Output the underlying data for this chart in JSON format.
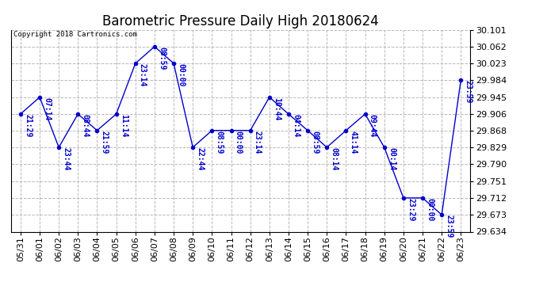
{
  "title": "Barometric Pressure Daily High 20180624",
  "copyright": "Copyright 2018 Cartronics.com",
  "line_color": "#0000cc",
  "background_color": "#ffffff",
  "plot_bg_color": "#ffffff",
  "grid_color": "#b8b8b8",
  "legend_bg": "#0000aa",
  "legend_text_color": "#ffffff",
  "ylim_min": 29.634,
  "ylim_max": 30.101,
  "yticks": [
    30.101,
    30.062,
    30.023,
    29.984,
    29.945,
    29.906,
    29.868,
    29.829,
    29.79,
    29.751,
    29.712,
    29.673,
    29.634
  ],
  "dates": [
    "05/31",
    "06/01",
    "06/02",
    "06/03",
    "06/04",
    "06/05",
    "06/06",
    "06/07",
    "06/08",
    "06/09",
    "06/10",
    "06/11",
    "06/12",
    "06/13",
    "06/14",
    "06/15",
    "06/16",
    "06/17",
    "06/18",
    "06/19",
    "06/20",
    "06/21",
    "06/22",
    "06/23"
  ],
  "values": [
    29.906,
    29.945,
    29.829,
    29.906,
    29.868,
    29.906,
    30.023,
    30.062,
    30.023,
    29.829,
    29.868,
    29.868,
    29.868,
    29.945,
    29.906,
    29.868,
    29.829,
    29.868,
    29.906,
    29.829,
    29.712,
    29.712,
    29.673,
    29.984
  ],
  "time_labels": [
    "21:29",
    "07:14",
    "23:44",
    "08:44",
    "21:59",
    "11:14",
    "23:14",
    "08:59",
    "00:00",
    "22:44",
    "08:59",
    "00:00",
    "23:14",
    "10:44",
    "04:14",
    "08:59",
    "08:14",
    "41:14",
    "09:44",
    "00:14",
    "23:29",
    "00:00",
    "23:59",
    "23:59"
  ],
  "title_fontsize": 12,
  "axis_fontsize": 8,
  "label_fontsize": 7,
  "marker_size": 3
}
